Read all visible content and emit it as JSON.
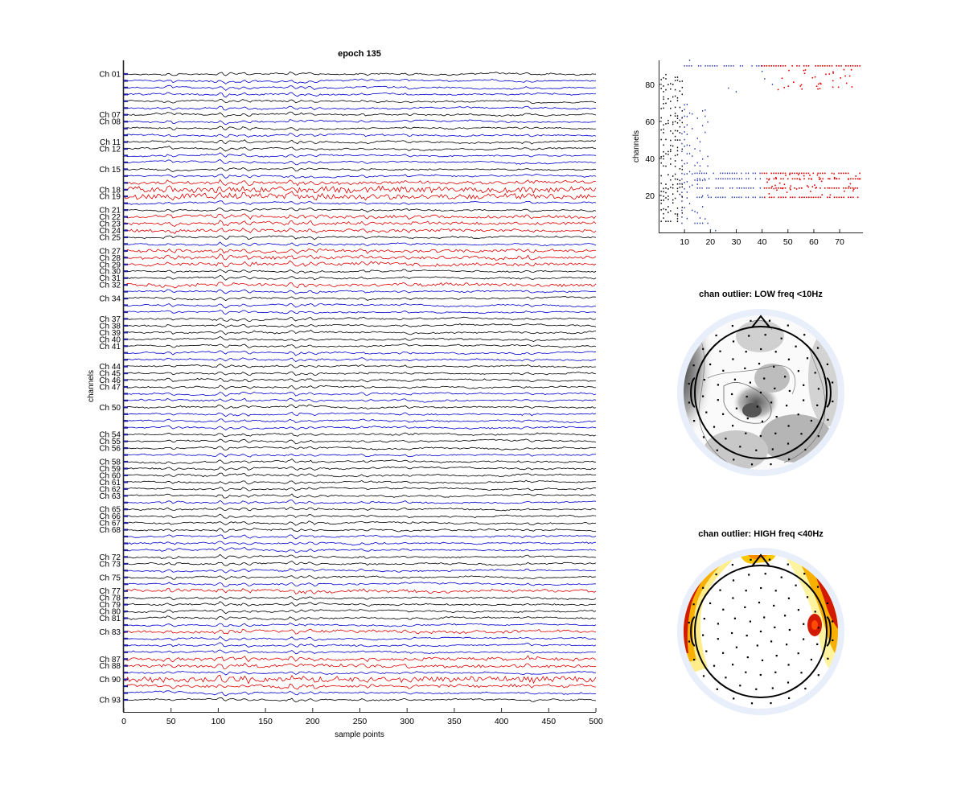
{
  "figure": {
    "main_title": "epoch 135",
    "main_xlabel": "sample points",
    "main_ylabel": "channels",
    "scatter_ylabel": "channels",
    "topo1_title": "chan outlier: LOW freq <10Hz",
    "topo2_title": "chan outlier: HIGH freq <40Hz"
  },
  "colors": {
    "normal": "#000000",
    "alternate": "#0000cc",
    "outlier": "#e00000",
    "axis": "#262626",
    "marker_blue": "#2222aa",
    "head_ring": "#dde8f8"
  },
  "chart_data": [
    {
      "type": "line",
      "title": "epoch 135",
      "xlabel": "sample points",
      "ylabel": "channels",
      "xlim": [
        0,
        500
      ],
      "xticks": [
        0,
        50,
        100,
        150,
        200,
        250,
        300,
        350,
        400,
        450,
        500
      ],
      "n_channels": 93,
      "labeled_channels": [
        "Ch 01",
        "Ch 07",
        "Ch 08",
        "Ch 11",
        "Ch 12",
        "Ch 15",
        "Ch 18",
        "Ch 19",
        "Ch 21",
        "Ch 22",
        "Ch 23",
        "Ch 24",
        "Ch 25",
        "Ch 27",
        "Ch 28",
        "Ch 29",
        "Ch 30",
        "Ch 31",
        "Ch 32",
        "Ch 34",
        "Ch 37",
        "Ch 38",
        "Ch 39",
        "Ch 40",
        "Ch 41",
        "Ch 44",
        "Ch 45",
        "Ch 46",
        "Ch 47",
        "Ch 50",
        "Ch 54",
        "Ch 55",
        "Ch 56",
        "Ch 58",
        "Ch 59",
        "Ch 60",
        "Ch 61",
        "Ch 62",
        "Ch 63",
        "Ch 65",
        "Ch 66",
        "Ch 67",
        "Ch 68",
        "Ch 72",
        "Ch 73",
        "Ch 75",
        "Ch 77",
        "Ch 78",
        "Ch 79",
        "Ch 80",
        "Ch 81",
        "Ch 83",
        "Ch 87",
        "Ch 88",
        "Ch 90",
        "Ch 93"
      ],
      "outlier_channels": [
        17,
        18,
        19,
        22,
        23,
        24,
        27,
        28,
        29,
        32,
        77,
        83,
        87,
        88,
        90,
        91
      ],
      "blue_channels": [
        2,
        3,
        4,
        6,
        8,
        10,
        13,
        14,
        16,
        20,
        26,
        33,
        35,
        36,
        42,
        43,
        48,
        49,
        51,
        52,
        53,
        57,
        64,
        69,
        70,
        71,
        74,
        76,
        82,
        84,
        85,
        86,
        89,
        92
      ],
      "high_amplitude_channels": [
        18,
        19,
        90
      ]
    },
    {
      "type": "scatter",
      "ylabel": "channels",
      "xlim": [
        0,
        79
      ],
      "ylim": [
        0,
        93
      ],
      "xticks": [
        10,
        20,
        30,
        40,
        50,
        60,
        70
      ],
      "yticks": [
        20,
        40,
        60,
        80
      ],
      "bands": [
        {
          "y": 90,
          "blue_from": 10,
          "red_from": 40,
          "red_to": 78
        },
        {
          "y": 32,
          "blue_from": 14,
          "red_from": 40,
          "red_to": 78
        },
        {
          "y": 29,
          "blue_from": 15,
          "red_from": 41,
          "red_to": 78
        },
        {
          "y": 24,
          "blue_from": 15,
          "red_from": 40,
          "red_to": 78
        },
        {
          "y": 19,
          "blue_from": 14,
          "red_from": 41,
          "red_to": 78
        }
      ]
    },
    {
      "type": "heatmap",
      "title": "chan outlier: LOW freq <10Hz",
      "colormap": "gray"
    },
    {
      "type": "heatmap",
      "title": "chan outlier: HIGH freq <40Hz",
      "colormap": "hot"
    }
  ]
}
